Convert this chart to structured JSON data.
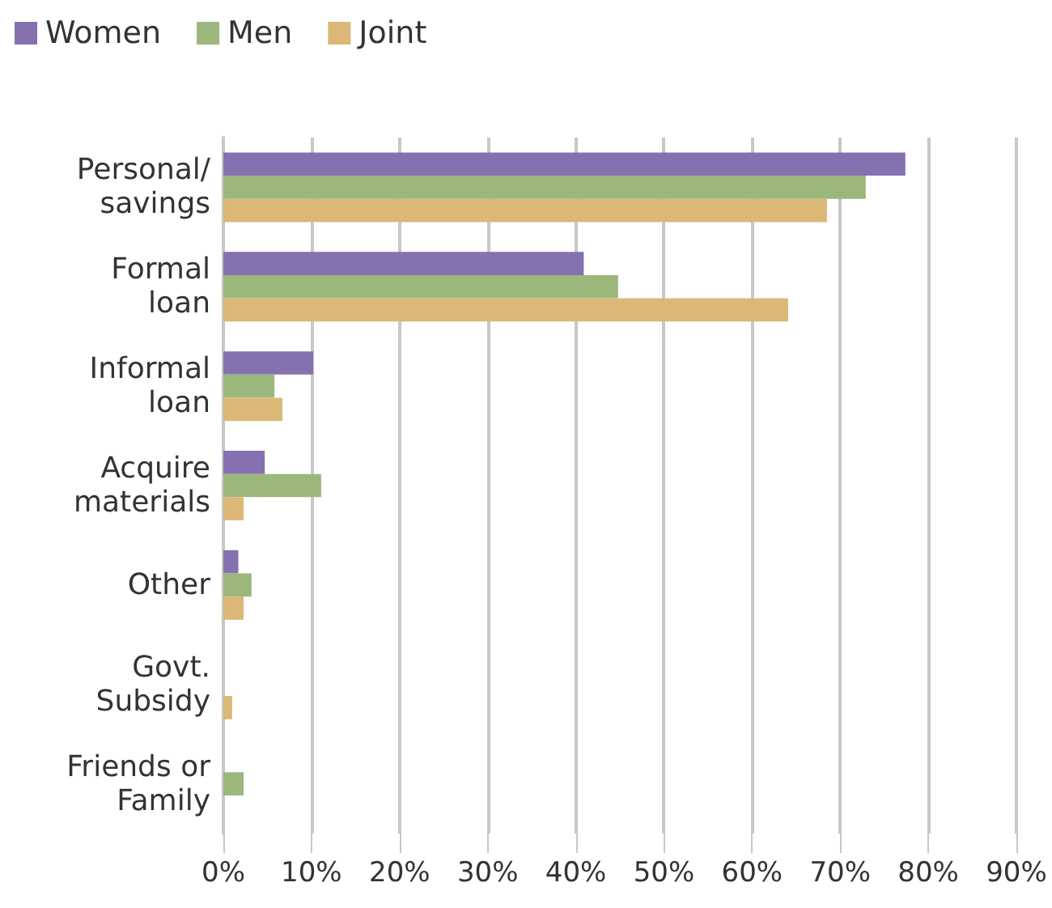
{
  "chart_data": {
    "type": "bar",
    "orientation": "horizontal",
    "categories": [
      "Personal/\nsavings",
      "Formal\nloan",
      "Informal\nloan",
      "Acquire\nmaterials",
      "Other",
      "Govt.\nSubsidy",
      "Friends or\nFamily"
    ],
    "series": [
      {
        "name": "Women",
        "color": "#8571b0",
        "values": [
          77.4,
          40.9,
          10.2,
          4.7,
          1.7,
          0,
          0
        ]
      },
      {
        "name": "Men",
        "color": "#9bb77b",
        "values": [
          72.9,
          44.8,
          5.8,
          11.1,
          3.2,
          0,
          2.3
        ]
      },
      {
        "name": "Joint",
        "color": "#dbb878",
        "values": [
          68.5,
          64.1,
          6.7,
          2.3,
          2.3,
          1.0,
          0
        ]
      }
    ],
    "xlim": [
      0,
      90
    ],
    "xticks": [
      {
        "value": 0,
        "label": "0%"
      },
      {
        "value": 10,
        "label": "10%"
      },
      {
        "value": 20,
        "label": "20%"
      },
      {
        "value": 30,
        "label": "30%"
      },
      {
        "value": 40,
        "label": "40%"
      },
      {
        "value": 50,
        "label": "50%"
      },
      {
        "value": 60,
        "label": "60%"
      },
      {
        "value": 70,
        "label": "70%"
      },
      {
        "value": 80,
        "label": "80%"
      },
      {
        "value": 90,
        "label": "90%"
      }
    ],
    "grid": "x",
    "legend": "top left"
  }
}
